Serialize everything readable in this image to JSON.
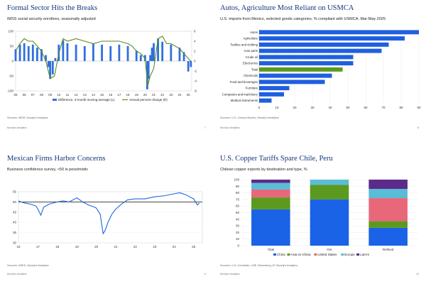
{
  "footer": {
    "brand": "Moody's Analytics"
  },
  "chart_data": [
    {
      "type": "bar",
      "title": "Formal Sector Hits the Breaks",
      "subtitle": "IMSS social security enrollees, seasonally adjusted",
      "source": "Sources: IMSS, Moody's Analytics",
      "page": "7",
      "x_ticks": [
        "05",
        "06",
        "07",
        "08",
        "09",
        "10",
        "11",
        "12",
        "13",
        "14",
        "15",
        "16",
        "17",
        "18",
        "19",
        "20",
        "21",
        "22",
        "23",
        "24",
        "25"
      ],
      "ylim_left": [
        -100,
        100
      ],
      "yticks_left": [
        "100",
        "50",
        "0",
        "-50",
        "-100"
      ],
      "ylim_right": [
        -6,
        6
      ],
      "yticks_right": [
        "6",
        "4",
        "2",
        "0",
        "-2",
        "-4",
        "-6"
      ],
      "series": [
        {
          "name": "Difference, 3-month moving average (L)",
          "kind": "bar",
          "color": "#2f6fe0",
          "x": [
            2005.0,
            2005.5,
            2006.0,
            2006.5,
            2007.0,
            2007.5,
            2008.0,
            2008.5,
            2008.8,
            2009.0,
            2009.3,
            2009.6,
            2010.0,
            2010.5,
            2011.0,
            2012.0,
            2013.0,
            2014.0,
            2015.0,
            2016.0,
            2017.0,
            2018.0,
            2019.0,
            2019.5,
            2020.0,
            2020.25,
            2020.4,
            2020.6,
            2020.8,
            2021.0,
            2021.5,
            2022.0,
            2023.0,
            2024.0,
            2024.5,
            2025.0,
            2025.3
          ],
          "values": [
            40,
            55,
            60,
            50,
            55,
            45,
            40,
            20,
            -20,
            -60,
            -45,
            10,
            55,
            70,
            60,
            55,
            50,
            60,
            55,
            50,
            55,
            50,
            35,
            20,
            20,
            -95,
            -60,
            20,
            45,
            60,
            75,
            65,
            55,
            45,
            30,
            -35,
            -20
          ]
        },
        {
          "name": "Annual percent change (R)",
          "kind": "line",
          "color": "#5a8a1f",
          "x": [
            2005.0,
            2005.5,
            2006.0,
            2006.5,
            2007.0,
            2007.5,
            2008.0,
            2008.5,
            2009.0,
            2009.5,
            2010.0,
            2010.5,
            2011.0,
            2012.0,
            2013.0,
            2014.0,
            2015.0,
            2016.0,
            2017.0,
            2018.0,
            2018.5,
            2019.0,
            2019.5,
            2020.0,
            2020.3,
            2020.6,
            2021.0,
            2021.5,
            2022.0,
            2022.5,
            2023.0,
            2023.5,
            2024.0,
            2024.5,
            2025.0,
            2025.3
          ],
          "values": [
            2.0,
            3.5,
            4.5,
            4.0,
            4.0,
            3.0,
            2.0,
            0.0,
            -3.5,
            -3.0,
            1.5,
            4.5,
            4.0,
            4.5,
            4.0,
            3.5,
            4.0,
            4.0,
            4.0,
            3.5,
            3.0,
            2.0,
            1.5,
            0.5,
            -5.0,
            -3.0,
            -1.5,
            4.5,
            5.0,
            3.5,
            3.5,
            3.0,
            2.5,
            1.5,
            0.5,
            0.0
          ]
        }
      ]
    },
    {
      "type": "bar",
      "title": "Autos, Agriculture Most Reliant on USMCA",
      "subtitle": "U.S. imports from Mexico, selected goods categories, % compliant with USMCA, Mar-May 2025",
      "source": "Sources: U.S. Census Bureau, Moody's Analytics",
      "page": "8",
      "categories": [
        "Autos",
        "Agriculture",
        "Textiles and clothing",
        "Auto parts",
        "Crude oil",
        "Electronics",
        "Total",
        "Chemicals",
        "Food and beverages",
        "Furniture",
        "Computers and machinery",
        "Medical instruments"
      ],
      "values": [
        90,
        82,
        73,
        69,
        53,
        53,
        47,
        41,
        37,
        17,
        14,
        7
      ],
      "highlight": "Total",
      "xlim": [
        0,
        90
      ],
      "x_ticks": [
        "0",
        "10",
        "20",
        "30",
        "40",
        "50",
        "60",
        "70",
        "80",
        "90"
      ]
    },
    {
      "type": "line",
      "title": "Mexican Firms Harbor Concerns",
      "subtitle": "Business confidence survey, <50 is pessimistic",
      "source": "Sources: INEGI, Moody's Analytics",
      "page": "9",
      "ylim": [
        30,
        55
      ],
      "yticks": [
        "55",
        "50",
        "45",
        "40",
        "35",
        "30"
      ],
      "x_ticks": [
        "16",
        "17",
        "18",
        "19",
        "20",
        "21",
        "22",
        "23",
        "24",
        "25"
      ],
      "reference_line": 50,
      "series": [
        {
          "name": "",
          "color": "#1f66e0",
          "x": [
            2016.0,
            2016.3,
            2016.6,
            2016.9,
            2017.0,
            2017.15,
            2017.3,
            2017.6,
            2018.0,
            2018.3,
            2018.6,
            2018.9,
            2019.0,
            2019.3,
            2019.6,
            2019.9,
            2020.0,
            2020.2,
            2020.35,
            2020.45,
            2020.6,
            2020.8,
            2021.0,
            2021.3,
            2021.6,
            2022.0,
            2022.5,
            2023.0,
            2023.5,
            2024.0,
            2024.3,
            2024.6,
            2025.0,
            2025.2,
            2025.3
          ],
          "values": [
            50.5,
            49.5,
            49.0,
            48.0,
            46.5,
            43.5,
            47.5,
            49.0,
            50.0,
            50.5,
            50.0,
            51.5,
            52.0,
            50.0,
            48.5,
            47.5,
            47.0,
            44.0,
            34.5,
            36.0,
            40.0,
            44.0,
            46.5,
            49.0,
            51.0,
            51.5,
            51.5,
            52.5,
            53.0,
            54.0,
            54.5,
            53.5,
            51.5,
            48.5,
            49.5
          ]
        }
      ]
    },
    {
      "type": "bar",
      "stacked": true,
      "title": "U.S. Copper Tariffs Spare Chile, Peru",
      "subtitle": "Chilean copper exports by destination and type, %",
      "source": "Sources: U.N. Comtrade, LME, Bloomberg LP, Moody's Analytics",
      "page": "10",
      "categories": [
        "Total",
        "Ore",
        "Refined"
      ],
      "ylim": [
        0,
        100
      ],
      "yticks": [
        "100",
        "90",
        "80",
        "70",
        "60",
        "50",
        "40",
        "30",
        "20",
        "10",
        "0"
      ],
      "series": [
        {
          "name": "China",
          "color": "#1a62e6",
          "values": [
            55,
            70,
            27
          ]
        },
        {
          "name": "Asia ex-China",
          "color": "#5b9a1e",
          "values": [
            18,
            22,
            10
          ]
        },
        {
          "name": "United States",
          "color": "#e8687a",
          "values": [
            12,
            0,
            35
          ]
        },
        {
          "name": "Europe",
          "color": "#5bbcd6",
          "values": [
            10,
            8,
            14
          ]
        },
        {
          "name": "LatAm",
          "color": "#5b2a8a",
          "values": [
            5,
            0,
            14
          ]
        }
      ]
    }
  ]
}
